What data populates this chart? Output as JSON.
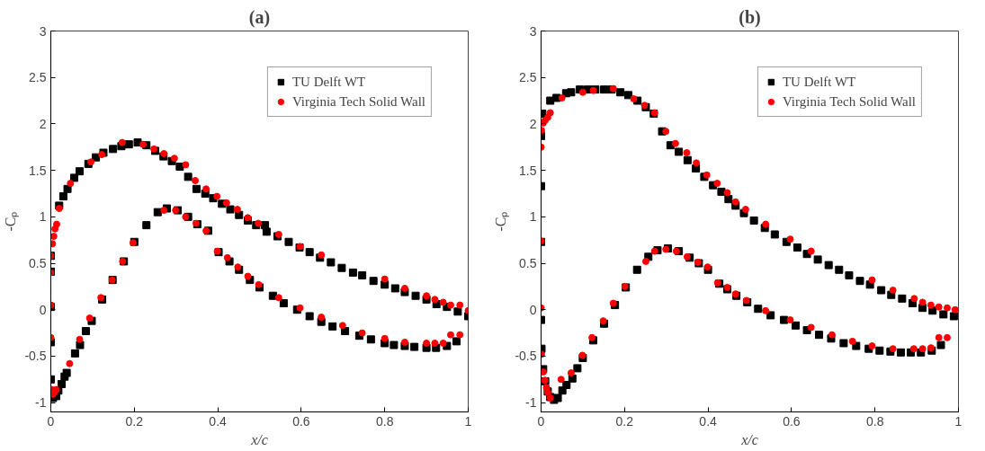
{
  "chart_data": [
    {
      "type": "scatter",
      "title": "(a)",
      "xlabel": "x/c",
      "ylabel": "-Cₚ",
      "xlim": [
        0,
        1
      ],
      "ylim": [
        -1.1,
        3
      ],
      "xticks": [
        0,
        0.2,
        0.4,
        0.6,
        0.8,
        1
      ],
      "yticks": [
        -1,
        -0.5,
        0,
        0.5,
        1,
        1.5,
        2,
        2.5,
        3
      ],
      "grid": false,
      "legend": "top right",
      "series": [
        {
          "name": "TU Delft WT",
          "color": "#000000",
          "marker": "square",
          "x": [
            0,
            0,
            0,
            0,
            0,
            0.02,
            0.03,
            0.04,
            0.056,
            0.069,
            0.09,
            0.108,
            0.126,
            0.149,
            0.169,
            0.187,
            0.208,
            0.229,
            0.25,
            0.27,
            0.29,
            0.309,
            0.329,
            0.349,
            0.37,
            0.389,
            0.41,
            0.43,
            0.451,
            0.472,
            0.492,
            0.513,
            0.517,
            0.543,
            0.57,
            0.596,
            0.62,
            0.645,
            0.671,
            0.697,
            0.724,
            0.746,
            0.773,
            0.8,
            0.825,
            0.848,
            0.874,
            0.9,
            0.924,
            0.949,
            0.975,
            1.0,
            0.005,
            0.013,
            0.018,
            0.026,
            0.033,
            0.038,
            0.058,
            0.07,
            0.084,
            0.098,
            0.123,
            0.148,
            0.175,
            0.2,
            0.229,
            0.256,
            0.278,
            0.304,
            0.329,
            0.351,
            0.377,
            0.402,
            0.428,
            0.451,
            0.477,
            0.5,
            0.532,
            0.558,
            0.59,
            0.62,
            0.648,
            0.675,
            0.705,
            0.739,
            0.767,
            0.8,
            0.822,
            0.848,
            0.871,
            0.9,
            0.923,
            0.949,
            0.972
          ],
          "values": [
            -0.75,
            -0.35,
            0.03,
            0.41,
            0.58,
            1.12,
            1.22,
            1.3,
            1.42,
            1.49,
            1.57,
            1.64,
            1.69,
            1.73,
            1.76,
            1.78,
            1.8,
            1.77,
            1.71,
            1.65,
            1.6,
            1.54,
            1.43,
            1.3,
            1.25,
            1.2,
            1.14,
            1.08,
            1.02,
            0.96,
            0.91,
            0.91,
            0.84,
            0.79,
            0.73,
            0.67,
            0.62,
            0.56,
            0.51,
            0.45,
            0.4,
            0.37,
            0.31,
            0.27,
            0.23,
            0.19,
            0.15,
            0.11,
            0.06,
            0.03,
            -0.02,
            -0.07,
            -0.95,
            -0.93,
            -0.87,
            -0.8,
            -0.72,
            -0.68,
            -0.47,
            -0.38,
            -0.23,
            -0.12,
            0.11,
            0.32,
            0.52,
            0.73,
            0.91,
            1.05,
            1.09,
            1.07,
            1.0,
            0.92,
            0.85,
            0.62,
            0.52,
            0.43,
            0.32,
            0.24,
            0.15,
            0.07,
            0.0,
            -0.07,
            -0.13,
            -0.18,
            -0.23,
            -0.28,
            -0.32,
            -0.36,
            -0.38,
            -0.39,
            -0.4,
            -0.41,
            -0.41,
            -0.39,
            -0.34
          ]
        },
        {
          "name": "Virginia Tech Solid Wall",
          "color": "#ff0000",
          "marker": "circle",
          "x": [
            0,
            0,
            0,
            0,
            0.004,
            0.007,
            0.01,
            0.014,
            0.02,
            0.047,
            0.096,
            0.122,
            0.171,
            0.221,
            0.247,
            0.271,
            0.296,
            0.323,
            0.346,
            0.372,
            0.398,
            0.421,
            0.447,
            0.472,
            0.497,
            0.546,
            0.597,
            0.648,
            0.8,
            0.848,
            0.9,
            0.92,
            0.94,
            0.958,
            0.98,
            1.0,
            0.002,
            0.005,
            0.009,
            0.013,
            0.045,
            0.069,
            0.093,
            0.12,
            0.147,
            0.172,
            0.197,
            0.271,
            0.299,
            0.323,
            0.348,
            0.372,
            0.399,
            0.423,
            0.448,
            0.472,
            0.498,
            0.546,
            0.597,
            0.648,
            0.699,
            0.746,
            0.8,
            0.848,
            0.9,
            0.92,
            0.94,
            0.958,
            0.98
          ],
          "values": [
            -0.3,
            0.05,
            0.4,
            0.58,
            0.71,
            0.79,
            0.87,
            0.92,
            1.09,
            1.36,
            1.59,
            1.67,
            1.8,
            1.78,
            1.73,
            1.68,
            1.63,
            1.56,
            1.39,
            1.3,
            1.22,
            1.15,
            1.08,
            0.99,
            0.93,
            0.81,
            0.68,
            0.59,
            0.33,
            0.23,
            0.15,
            0.11,
            0.08,
            0.05,
            0.05,
            -0.01,
            -0.86,
            -0.91,
            -0.89,
            -0.86,
            -0.58,
            -0.32,
            -0.09,
            0.13,
            0.32,
            0.52,
            0.72,
            1.07,
            1.07,
            1.0,
            0.93,
            0.85,
            0.63,
            0.56,
            0.46,
            0.36,
            0.27,
            0.13,
            0.02,
            -0.08,
            -0.17,
            -0.25,
            -0.31,
            -0.35,
            -0.36,
            -0.36,
            -0.36,
            -0.27,
            -0.27
          ]
        }
      ]
    },
    {
      "type": "scatter",
      "title": "(b)",
      "xlabel": "x/c",
      "ylabel": "-Cₚ",
      "xlim": [
        0,
        1
      ],
      "ylim": [
        -1.1,
        3
      ],
      "xticks": [
        0,
        0.2,
        0.4,
        0.6,
        0.8,
        1
      ],
      "yticks": [
        -1,
        -0.5,
        0,
        0.5,
        1,
        1.5,
        2,
        2.5,
        3
      ],
      "grid": false,
      "legend": "top right",
      "series": [
        {
          "name": "TU Delft WT",
          "color": "#000000",
          "marker": "square",
          "x": [
            0,
            0,
            0,
            0.003,
            0.022,
            0.037,
            0.06,
            0.072,
            0.093,
            0.112,
            0.13,
            0.151,
            0.169,
            0.19,
            0.209,
            0.231,
            0.251,
            0.27,
            0.29,
            0.31,
            0.33,
            0.351,
            0.371,
            0.391,
            0.412,
            0.432,
            0.449,
            0.466,
            0.486,
            0.51,
            0.536,
            0.56,
            0.588,
            0.614,
            0.637,
            0.663,
            0.689,
            0.714,
            0.738,
            0.764,
            0.788,
            0.815,
            0.839,
            0.865,
            0.89,
            0.914,
            0.938,
            0.964,
            0.989,
            0.0,
            0.001,
            0.005,
            0.01,
            0.016,
            0.022,
            0.031,
            0.04,
            0.051,
            0.061,
            0.075,
            0.087,
            0.1,
            0.125,
            0.151,
            0.177,
            0.203,
            0.23,
            0.257,
            0.279,
            0.304,
            0.33,
            0.356,
            0.378,
            0.4,
            0.427,
            0.446,
            0.468,
            0.494,
            0.52,
            0.55,
            0.582,
            0.61,
            0.637,
            0.666,
            0.695,
            0.725,
            0.755,
            0.785,
            0.811,
            0.837,
            0.862,
            0.886,
            0.91,
            0.936,
            0.958
          ],
          "values": [
            0.73,
            1.33,
            1.87,
            2.11,
            2.25,
            2.28,
            2.33,
            2.34,
            2.37,
            2.37,
            2.37,
            2.37,
            2.37,
            2.34,
            2.31,
            2.25,
            2.18,
            2.11,
            1.92,
            1.77,
            1.7,
            1.61,
            1.52,
            1.43,
            1.34,
            1.27,
            1.19,
            1.12,
            1.04,
            0.96,
            0.88,
            0.81,
            0.73,
            0.67,
            0.6,
            0.54,
            0.48,
            0.43,
            0.37,
            0.31,
            0.27,
            0.21,
            0.16,
            0.12,
            0.07,
            0.02,
            -0.01,
            -0.05,
            -0.07,
            -0.11,
            -0.42,
            -0.64,
            -0.77,
            -0.88,
            -0.94,
            -0.97,
            -0.95,
            -0.87,
            -0.81,
            -0.74,
            -0.63,
            -0.52,
            -0.33,
            -0.15,
            0.05,
            0.24,
            0.43,
            0.57,
            0.64,
            0.66,
            0.63,
            0.56,
            0.5,
            0.43,
            0.28,
            0.22,
            0.15,
            0.08,
            0.01,
            -0.06,
            -0.11,
            -0.17,
            -0.22,
            -0.27,
            -0.31,
            -0.36,
            -0.39,
            -0.42,
            -0.44,
            -0.45,
            -0.46,
            -0.46,
            -0.46,
            -0.44,
            -0.38
          ]
        },
        {
          "name": "Virginia Tech Solid Wall",
          "color": "#ff0000",
          "marker": "circle",
          "x": [
            0,
            0.001,
            0.005,
            0.01,
            0.016,
            0.022,
            0.05,
            0.1,
            0.125,
            0.173,
            0.222,
            0.248,
            0.272,
            0.299,
            0.322,
            0.349,
            0.372,
            0.397,
            0.422,
            0.446,
            0.466,
            0.49,
            0.538,
            0.597,
            0.647,
            0.793,
            0.843,
            0.894,
            0.914,
            0.934,
            0.953,
            0.973,
            0.992,
            0,
            0,
            0.001,
            0.005,
            0.009,
            0.013,
            0.016,
            0.022,
            0.048,
            0.072,
            0.099,
            0.122,
            0.149,
            0.173,
            0.201,
            0.251,
            0.272,
            0.299,
            0.324,
            0.35,
            0.376,
            0.399,
            0.423,
            0.446,
            0.466,
            0.492,
            0.538,
            0.597,
            0.647,
            0.697,
            0.746,
            0.793,
            0.843,
            0.893,
            0.914,
            0.934,
            0.953,
            0.973
          ],
          "values": [
            1.75,
            1.93,
            2.01,
            2.04,
            2.07,
            2.12,
            2.28,
            2.34,
            2.36,
            2.38,
            2.27,
            2.2,
            2.12,
            1.92,
            1.79,
            1.69,
            1.58,
            1.45,
            1.36,
            1.26,
            1.16,
            1.08,
            0.92,
            0.76,
            0.63,
            0.32,
            0.21,
            0.12,
            0.08,
            0.05,
            0.03,
            0.02,
            0.0,
            0.02,
            0.74,
            -0.48,
            -0.67,
            -0.76,
            -0.84,
            -0.89,
            -0.95,
            -0.75,
            -0.68,
            -0.49,
            -0.3,
            -0.12,
            0.07,
            0.25,
            0.52,
            0.63,
            0.65,
            0.63,
            0.57,
            0.51,
            0.46,
            0.29,
            0.24,
            0.17,
            0.1,
            -0.01,
            -0.11,
            -0.19,
            -0.27,
            -0.34,
            -0.39,
            -0.42,
            -0.42,
            -0.42,
            -0.41,
            -0.3,
            -0.3
          ]
        }
      ]
    }
  ]
}
